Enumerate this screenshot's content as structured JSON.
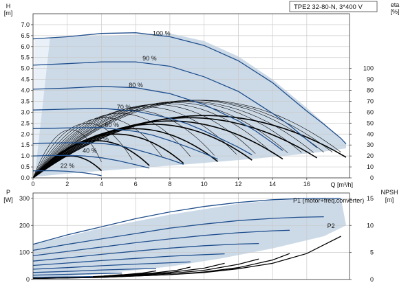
{
  "chart_data": [
    {
      "type": "line",
      "panel": "head-efficiency",
      "title": "TPE2 32-80-N, 3*400 V",
      "xlabel": "Q [m³/h]",
      "ylabel": "H\n[m]",
      "ylabel_right": "eta\n[%]",
      "xlim": [
        0,
        18.5
      ],
      "ylim": [
        0,
        7.5
      ],
      "ylim_right": [
        0,
        150
      ],
      "xticks": [
        "0",
        "2",
        "4",
        "6",
        "8",
        "10",
        "12",
        "14",
        "16"
      ],
      "yticks": [
        "0.0",
        "0.5",
        "1.0",
        "1.5",
        "2.0",
        "2.5",
        "3.0",
        "3.5",
        "4.0",
        "4.5",
        "5.0",
        "5.5",
        "6.0",
        "6.5",
        "7.0"
      ],
      "yticks_right": [
        "0",
        "10",
        "20",
        "30",
        "40",
        "50",
        "60",
        "70",
        "80",
        "90",
        "100"
      ],
      "grid": true,
      "colors": {
        "operating_range": "#c6d6e6",
        "head_curve": "#1f4e8c",
        "efficiency_curve": "#000000",
        "frame": "#333333"
      },
      "operating_range": {
        "x": [
          0,
          0.1,
          1.0,
          8.0,
          10.0,
          12.0,
          14.0,
          16.0,
          17.0,
          17.6,
          18.3,
          18.3,
          17.0,
          15.0,
          13.0,
          11.0,
          9.0,
          7.0,
          5.0,
          3.0,
          2.0,
          1.0,
          0
        ],
        "y": [
          0.05,
          6.35,
          6.42,
          6.6,
          6.25,
          5.55,
          4.5,
          3.2,
          2.5,
          2.05,
          1.55,
          1.35,
          1.2,
          1.03,
          0.88,
          0.75,
          0.62,
          0.5,
          0.38,
          0.26,
          0.19,
          0.12,
          0.05
        ]
      },
      "head_curves": [
        {
          "label": "100 %",
          "x": [
            0,
            2,
            4,
            6,
            8,
            10,
            12,
            14,
            16,
            17,
            18,
            18.3
          ],
          "y": [
            6.35,
            6.45,
            6.6,
            6.63,
            6.45,
            6.05,
            5.35,
            4.35,
            3.05,
            2.45,
            1.8,
            1.55
          ]
        },
        {
          "label": "90 %",
          "x": [
            0,
            2,
            4,
            6,
            8,
            10,
            12,
            14,
            15,
            16,
            16.6
          ],
          "y": [
            5.15,
            5.22,
            5.3,
            5.3,
            5.1,
            4.62,
            3.95,
            2.95,
            2.4,
            1.75,
            1.38
          ]
        },
        {
          "label": "80 %",
          "x": [
            0,
            2,
            4,
            6,
            8,
            10,
            12,
            13,
            14,
            14.6
          ],
          "y": [
            4.05,
            4.1,
            4.18,
            4.12,
            3.85,
            3.35,
            2.6,
            2.15,
            1.6,
            1.25
          ]
        },
        {
          "label": "70 %",
          "x": [
            0,
            2,
            4,
            6,
            8,
            9,
            10,
            11,
            12,
            12.8
          ],
          "y": [
            3.1,
            3.14,
            3.18,
            3.05,
            2.72,
            2.48,
            2.15,
            1.78,
            1.4,
            1.05
          ]
        },
        {
          "label": "60 %",
          "x": [
            0,
            2,
            4,
            6,
            7,
            8,
            9,
            10,
            10.8
          ],
          "y": [
            2.25,
            2.28,
            2.3,
            2.12,
            1.95,
            1.7,
            1.42,
            1.12,
            0.85
          ]
        },
        {
          "label": "50 %",
          "x": [
            0,
            2,
            3,
            4,
            5,
            6,
            7,
            8,
            8.8
          ],
          "y": [
            1.58,
            1.6,
            1.6,
            1.58,
            1.48,
            1.3,
            1.08,
            0.84,
            0.62
          ]
        },
        {
          "label": "40 %",
          "x": [
            0,
            1,
            2,
            3,
            4,
            5,
            6,
            6.8
          ],
          "y": [
            1.0,
            1.02,
            1.03,
            1.0,
            0.92,
            0.78,
            0.6,
            0.45
          ]
        },
        {
          "label": "22 %",
          "x": [
            0,
            1,
            2,
            3,
            3.6,
            4.0
          ],
          "y": [
            0.32,
            0.33,
            0.3,
            0.23,
            0.16,
            0.1
          ]
        }
      ],
      "curve_labels": [
        {
          "text": "100 %",
          "x": 7.0,
          "y": 6.45
        },
        {
          "text": "90 %",
          "x": 6.4,
          "y": 5.3
        },
        {
          "text": "80 %",
          "x": 5.6,
          "y": 4.08
        },
        {
          "text": "70 %",
          "x": 4.9,
          "y": 3.08
        },
        {
          "text": "60 %",
          "x": 4.2,
          "y": 2.26
        },
        {
          "text": "50 %",
          "x": 3.6,
          "y": 1.62
        },
        {
          "text": "40 %",
          "x": 2.9,
          "y": 1.08
        },
        {
          "text": "22 %",
          "x": 1.6,
          "y": 0.4
        }
      ],
      "efficiency_curves": [
        {
          "x_end": 18.0,
          "peak": 71,
          "bold": false
        },
        {
          "x_end": 17.5,
          "peak": 71,
          "bold": false
        },
        {
          "x_end": 17.0,
          "peak": 71,
          "bold": false
        },
        {
          "x_end": 16.4,
          "peak": 70,
          "bold": false
        },
        {
          "x_end": 15.7,
          "peak": 70,
          "bold": false
        },
        {
          "x_end": 14.9,
          "peak": 69,
          "bold": false
        },
        {
          "x_end": 14.0,
          "peak": 68,
          "bold": false
        },
        {
          "x_end": 13.0,
          "peak": 67,
          "bold": false
        },
        {
          "x_end": 11.9,
          "peak": 65,
          "bold": false
        },
        {
          "x_end": 10.6,
          "peak": 62,
          "bold": false
        },
        {
          "x_end": 9.2,
          "peak": 59,
          "bold": false
        },
        {
          "x_end": 7.6,
          "peak": 55,
          "bold": false
        },
        {
          "x_end": 5.8,
          "peak": 50,
          "bold": false
        },
        {
          "x_end": 4.0,
          "peak": 44,
          "bold": false
        },
        {
          "x_end": 18.3,
          "peak": 57,
          "bold": true
        },
        {
          "x_end": 16.6,
          "peak": 55,
          "bold": true
        },
        {
          "x_end": 14.6,
          "peak": 52,
          "bold": true
        },
        {
          "x_end": 12.8,
          "peak": 49,
          "bold": true
        },
        {
          "x_end": 10.8,
          "peak": 45,
          "bold": true
        },
        {
          "x_end": 8.8,
          "peak": 40,
          "bold": true
        },
        {
          "x_end": 6.8,
          "peak": 34,
          "bold": true
        },
        {
          "x_end": 4.0,
          "peak": 20,
          "bold": true
        }
      ]
    },
    {
      "type": "line",
      "panel": "power-npsh",
      "ylabel": "P\n[W]",
      "ylabel_right": "NPSH\n[m]",
      "xlim": [
        0,
        18.5
      ],
      "ylim": [
        0,
        320
      ],
      "ylim_right": [
        0,
        16
      ],
      "yticks": [
        "0",
        "100",
        "200",
        "300"
      ],
      "yticks_right": [
        "0",
        "5",
        "10",
        "15"
      ],
      "grid": true,
      "colors": {
        "operating_range": "#c6d6e6",
        "power_curve": "#1f4e8c",
        "npsh_curve": "#000000"
      },
      "operating_range": {
        "x": [
          0,
          0,
          4,
          8,
          12,
          14,
          16,
          17,
          18.0,
          18.3,
          17.0,
          14.0,
          11.0,
          8.0,
          5.0,
          2.0,
          0
        ],
        "y": [
          5,
          130,
          190,
          240,
          280,
          292,
          298,
          300,
          300,
          200,
          160,
          115,
          78,
          48,
          28,
          12,
          5
        ]
      },
      "power_curves": [
        {
          "x": [
            0,
            2,
            4,
            6,
            8,
            10,
            12,
            14,
            16,
            17,
            18.0
          ],
          "y": [
            130,
            165,
            195,
            225,
            250,
            270,
            285,
            295,
            300,
            300,
            300
          ]
        },
        {
          "x": [
            0,
            2,
            4,
            6,
            8,
            10,
            12,
            14,
            15.5,
            17.0
          ],
          "y": [
            108,
            130,
            150,
            170,
            190,
            205,
            218,
            226,
            230,
            232
          ]
        },
        {
          "x": [
            0,
            2,
            4,
            6,
            8,
            10,
            12,
            14,
            15.0
          ],
          "y": [
            88,
            104,
            120,
            136,
            150,
            163,
            173,
            180,
            182
          ]
        },
        {
          "x": [
            0,
            2,
            4,
            6,
            8,
            10,
            12,
            13.2
          ],
          "y": [
            68,
            80,
            93,
            105,
            116,
            125,
            131,
            133
          ]
        },
        {
          "x": [
            0,
            2,
            4,
            6,
            8,
            10,
            11.2
          ],
          "y": [
            52,
            61,
            70,
            78,
            86,
            92,
            95
          ]
        },
        {
          "x": [
            0,
            2,
            4,
            6,
            8,
            9.2
          ],
          "y": [
            38,
            44,
            51,
            57,
            62,
            65
          ]
        },
        {
          "x": [
            0,
            2,
            4,
            6,
            7.2
          ],
          "y": [
            26,
            30,
            35,
            39,
            41
          ]
        },
        {
          "x": [
            0,
            2,
            4,
            5.2
          ],
          "y": [
            16,
            19,
            22,
            24
          ]
        },
        {
          "x": [
            0,
            1,
            2,
            3.5
          ],
          "y": [
            8,
            9,
            10,
            11
          ]
        }
      ],
      "npsh_curves": [
        {
          "x": [
            0,
            4,
            8,
            10,
            12,
            14,
            16,
            17,
            18.0
          ],
          "y": [
            0.2,
            0.4,
            0.9,
            1.3,
            2.0,
            3.0,
            4.8,
            6.4,
            8.0
          ]
        },
        {
          "x": [
            0,
            4,
            8,
            10,
            12,
            14,
            15.0
          ],
          "y": [
            0.2,
            0.4,
            0.9,
            1.4,
            2.2,
            3.6,
            4.8
          ]
        },
        {
          "x": [
            0,
            4,
            8,
            10,
            12,
            13.2
          ],
          "y": [
            0.2,
            0.5,
            1.1,
            1.7,
            2.8,
            3.8
          ]
        },
        {
          "x": [
            0,
            4,
            8,
            10,
            11.2
          ],
          "y": [
            0.2,
            0.5,
            1.3,
            2.1,
            3.0
          ]
        },
        {
          "x": [
            0,
            4,
            7,
            8.4,
            9.2
          ],
          "y": [
            0.2,
            0.6,
            1.2,
            1.7,
            2.3
          ]
        },
        {
          "x": [
            0,
            3,
            5,
            6.4,
            7.2
          ],
          "y": [
            0.2,
            0.4,
            0.8,
            1.2,
            1.6
          ]
        },
        {
          "x": [
            0,
            2,
            4,
            5.2
          ],
          "y": [
            0.2,
            0.3,
            0.6,
            0.9
          ]
        }
      ],
      "annotations": [
        {
          "text": "P1 (motor+freq.converter)",
          "x": 15.2,
          "y": 285
        },
        {
          "text": "P2",
          "x": 17.2,
          "y": 190
        }
      ]
    }
  ]
}
